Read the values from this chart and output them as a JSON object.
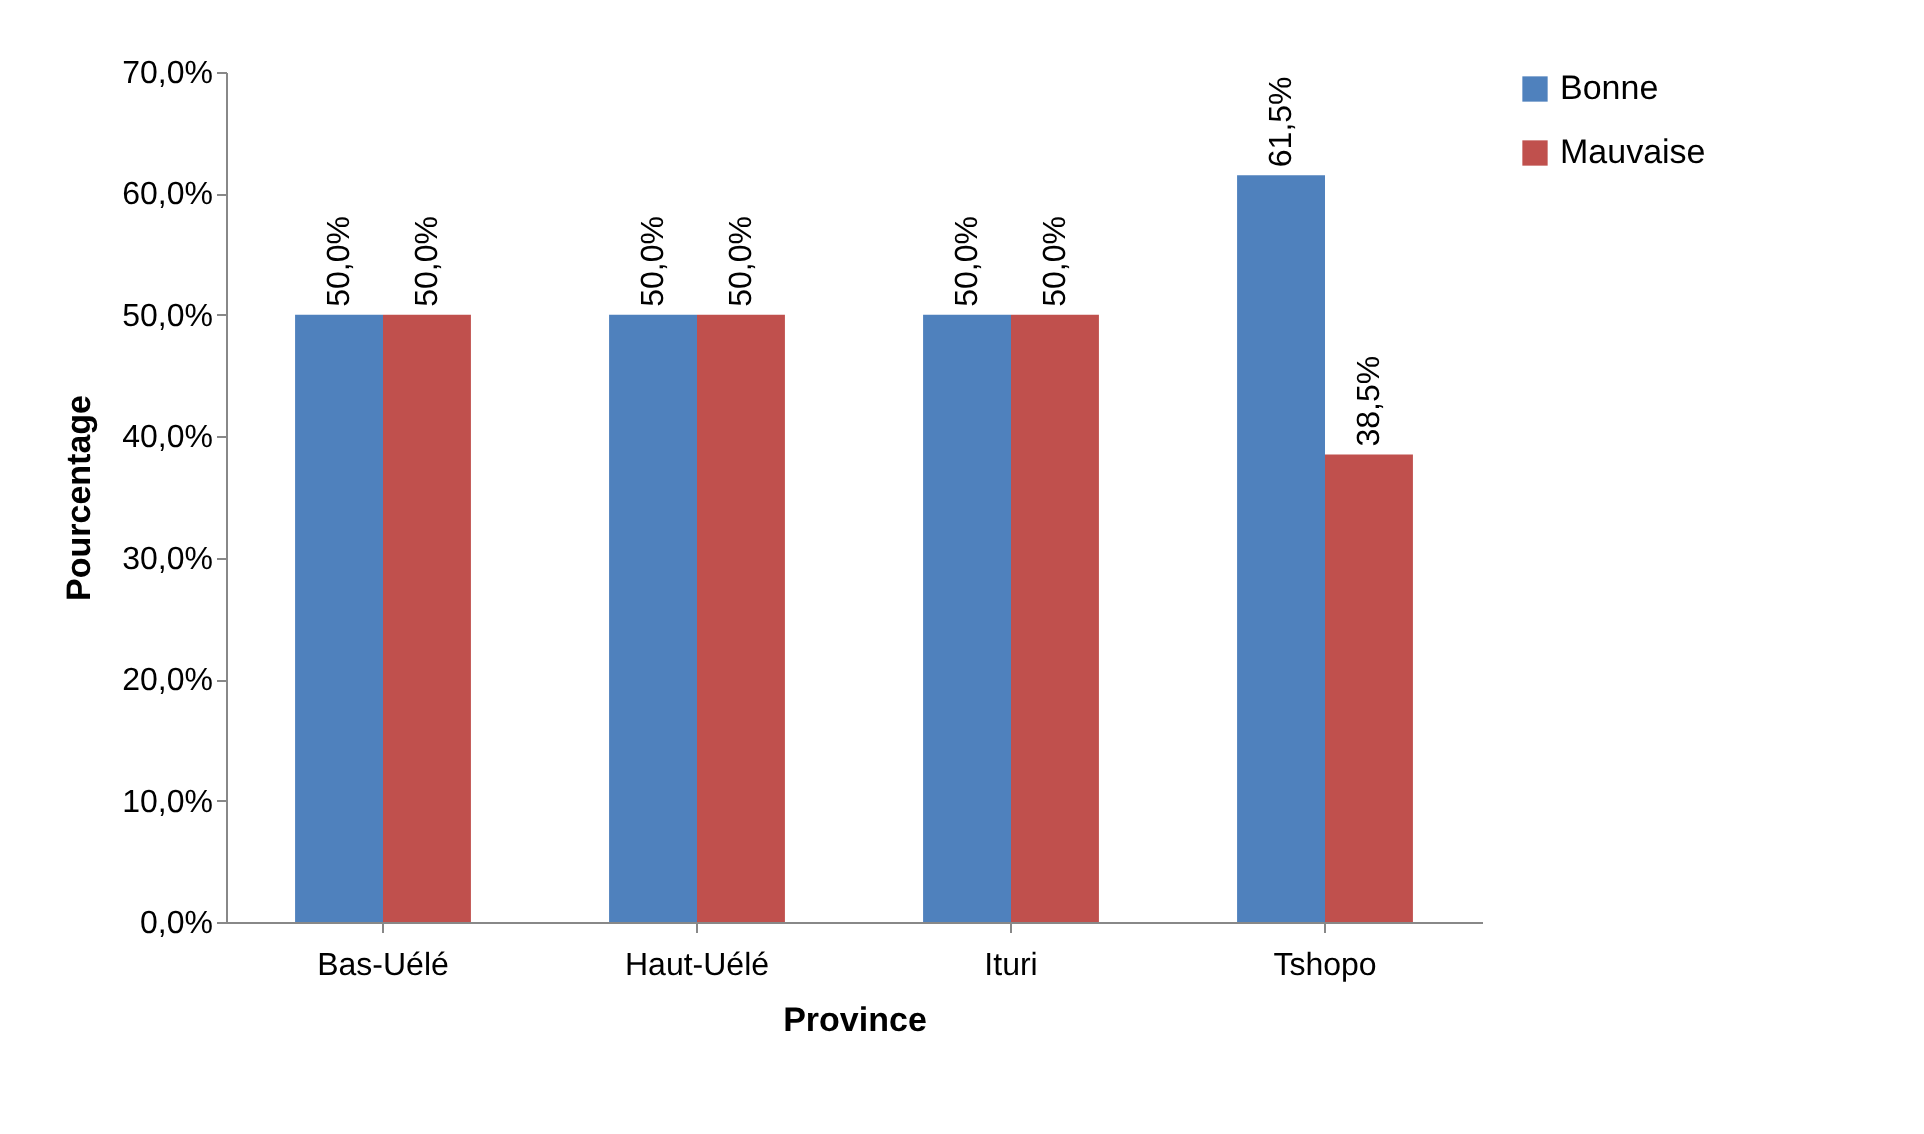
{
  "chart_data": {
    "type": "bar",
    "xlabel": "Province",
    "ylabel": "Pourcentage",
    "categories": [
      "Bas-Uélé",
      "Haut-Uélé",
      "Ituri",
      "Tshopo"
    ],
    "series": [
      {
        "name": "Bonne",
        "color": "#4f81bd",
        "values": [
          50,
          50,
          50,
          61.5
        ],
        "value_labels": [
          "50,0%",
          "50,0%",
          "50,0%",
          "61,5%"
        ]
      },
      {
        "name": "Mauvaise",
        "color": "#c0504d",
        "values": [
          50,
          50,
          50,
          38.5
        ],
        "value_labels": [
          "50,0%",
          "50,0%",
          "50,0%",
          "38,5%"
        ]
      }
    ],
    "ylim": [
      0,
      70
    ],
    "yticks": [
      {
        "value": 0,
        "label": "0,0%"
      },
      {
        "value": 10,
        "label": "10,0%"
      },
      {
        "value": 20,
        "label": "20,0%"
      },
      {
        "value": 30,
        "label": "30,0%"
      },
      {
        "value": 40,
        "label": "40,0%"
      },
      {
        "value": 50,
        "label": "50,0%"
      },
      {
        "value": 60,
        "label": "60,0%"
      },
      {
        "value": 70,
        "label": "70,0%"
      }
    ],
    "grid": false,
    "legend": "right"
  }
}
